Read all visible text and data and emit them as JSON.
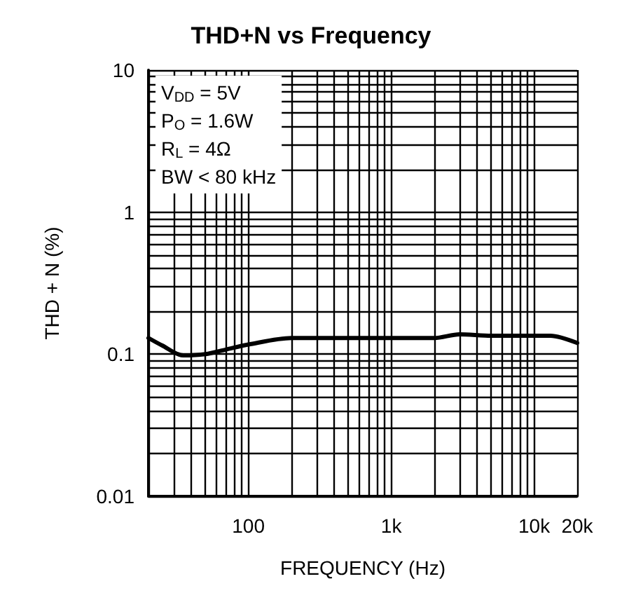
{
  "chart_data": {
    "type": "line",
    "title": "THD+N vs Frequency",
    "xlabel": "FREQUENCY (Hz)",
    "ylabel": "THD + N (%)",
    "annotations": [
      "V$_{DD}$ = 5V",
      "P$_{O}$ = 1.6W",
      "R$_{L}$ = 4Ω",
      "BW < 80 kHz"
    ],
    "x": [
      20,
      25,
      35,
      50,
      70,
      100,
      200,
      500,
      1000,
      2000,
      3000,
      5000,
      10000,
      13000,
      20000
    ],
    "series": [
      {
        "color": "#000000",
        "values": [
          0.13,
          0.115,
          0.098,
          0.1,
          0.108,
          0.117,
          0.13,
          0.13,
          0.13,
          0.13,
          0.138,
          0.135,
          0.135,
          0.135,
          0.12
        ]
      }
    ],
    "log": "xy",
    "xlim": [
      20,
      20000
    ],
    "xticks": [
      {
        "value": 20,
        "label": null
      },
      {
        "value": 100,
        "label": "100"
      },
      {
        "value": 1000,
        "label": "1k"
      },
      {
        "value": 10000,
        "label": "10k"
      },
      {
        "value": 20000,
        "label": "20k"
      }
    ],
    "ylim": [
      0.01,
      10
    ],
    "yticks": [
      {
        "value": 0.01,
        "label": "0.01"
      },
      {
        "value": 0.1,
        "label": "0.1"
      },
      {
        "value": 1,
        "label": "1"
      },
      {
        "value": 10,
        "label": "10"
      }
    ],
    "grid": true,
    "marker": "none",
    "line_style": "solid"
  }
}
